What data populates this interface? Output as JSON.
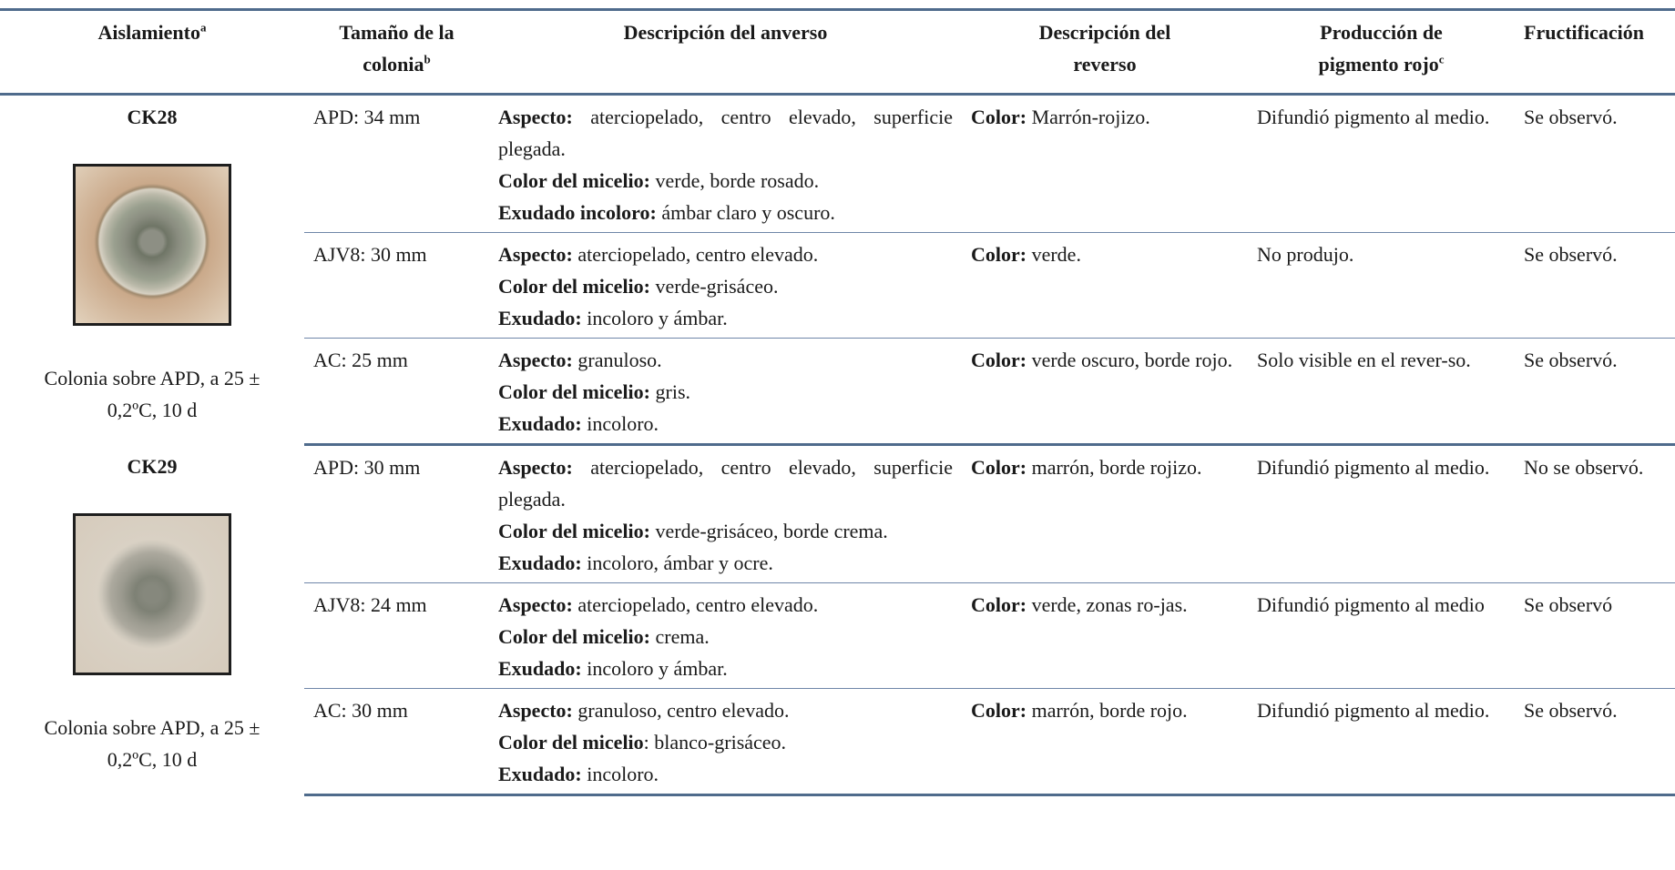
{
  "header": {
    "columns": [
      {
        "text": "Aislamiento",
        "sup": "a"
      },
      {
        "text": "Tamaño de la colonia",
        "sup": "b"
      },
      {
        "text": "Descripción del anverso"
      },
      {
        "text": "Descripción del reverso"
      },
      {
        "text": "Producción de pigmento rojo",
        "sup": "c"
      },
      {
        "text": "Fructificación"
      }
    ]
  },
  "groups": [
    {
      "isolate": "CK28",
      "caption": "Colonia sobre APD, a 25 ± 0,2ºC, 10 d",
      "rows": [
        {
          "size": "APD: 34 mm",
          "front": [
            {
              "label": "Aspecto:",
              "text": " aterciopelado, centro elevado, superficie plegada."
            },
            {
              "label": "Color del micelio:",
              "text": " verde, borde rosado."
            },
            {
              "label": "Exudado incoloro:",
              "text": " ámbar claro y oscuro."
            }
          ],
          "reverse": {
            "label": "Color:",
            "text": " Marrón-rojizo."
          },
          "pigment": "Difundió pigmento al medio.",
          "fruiting": "Se observó."
        },
        {
          "size": "AJV8: 30 mm",
          "front": [
            {
              "label": "Aspecto:",
              "text": " aterciopelado, centro elevado."
            },
            {
              "label": "Color del micelio:",
              "text": " verde-grisáceo."
            },
            {
              "label": "Exudado:",
              "text": " incoloro y ámbar."
            }
          ],
          "reverse": {
            "label": "Color:",
            "text": " verde."
          },
          "pigment": "No produjo.",
          "fruiting": "Se observó."
        },
        {
          "size": "AC: 25 mm",
          "front": [
            {
              "label": "Aspecto:",
              "text": " granuloso."
            },
            {
              "label": "Color del micelio:",
              "text": " gris."
            },
            {
              "label": "Exudado:",
              "text": " incoloro."
            }
          ],
          "reverse": {
            "label": "Color:",
            "text": " verde oscuro, borde rojo."
          },
          "pigment": "Solo visible en el rever-so.",
          "fruiting": "Se observó."
        }
      ]
    },
    {
      "isolate": "CK29",
      "caption": "Colonia sobre APD, a 25 ± 0,2ºC, 10 d",
      "rows": [
        {
          "size": "APD: 30 mm",
          "front": [
            {
              "label": "Aspecto:",
              "text": " aterciopelado, centro elevado, superficie plegada."
            },
            {
              "label": "Color del micelio:",
              "text": " verde-grisáceo, borde crema."
            },
            {
              "label": "Exudado:",
              "text": " incoloro, ámbar y ocre."
            }
          ],
          "reverse": {
            "label": "Color:",
            "text": " marrón, borde rojizo."
          },
          "pigment": "Difundió pigmento al medio.",
          "fruiting": "No se observó."
        },
        {
          "size": "AJV8: 24 mm",
          "front": [
            {
              "label": "Aspecto:",
              "text": " aterciopelado, centro elevado."
            },
            {
              "label": "Color del micelio:",
              "text": " crema."
            },
            {
              "label": "Exudado:",
              "text": " incoloro y ámbar."
            }
          ],
          "reverse": {
            "label": "Color:",
            "text": " verde, zonas ro-jas."
          },
          "pigment": "Difundió pigmento al medio",
          "fruiting": "Se observó"
        },
        {
          "size": "AC: 30 mm",
          "front": [
            {
              "label": "Aspecto:",
              "text": " granuloso, centro elevado."
            },
            {
              "label": "Color del micelio",
              "text": ": blanco-grisáceo."
            },
            {
              "label": "Exudado:",
              "text": " incoloro."
            }
          ],
          "reverse": {
            "label": "Color:",
            "text": " marrón, borde rojo."
          },
          "pigment": "Difundió pigmento al medio.",
          "fruiting": "Se observó."
        }
      ]
    }
  ]
}
